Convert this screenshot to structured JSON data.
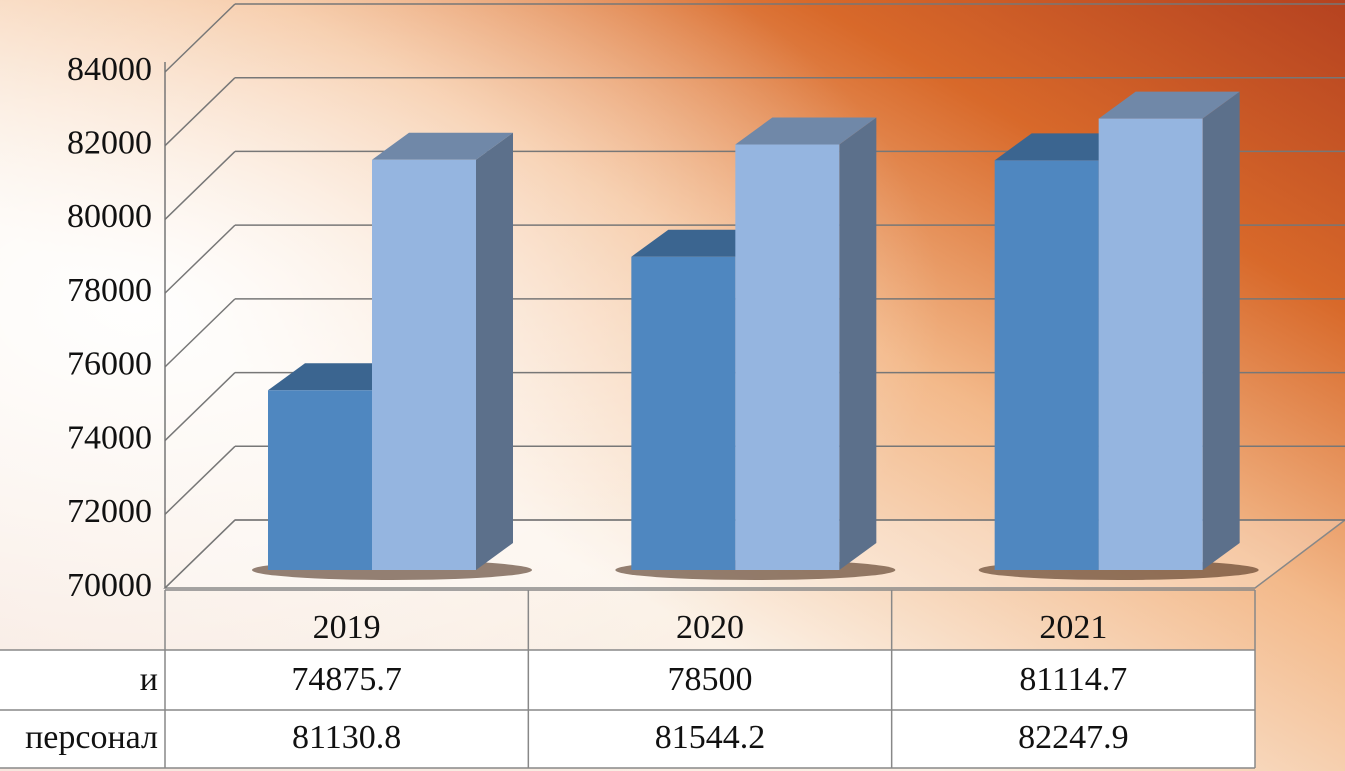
{
  "chart_data": {
    "type": "bar",
    "categories": [
      "2019",
      "2020",
      "2021"
    ],
    "series": [
      {
        "name": "и",
        "color": "#4f87c0",
        "values": [
          74875.7,
          78500,
          81114.7
        ]
      },
      {
        "name": "персонал",
        "color": "#95b5e0",
        "values": [
          81130.8,
          81544.2,
          82247.9
        ]
      }
    ],
    "ylim": [
      70000,
      84000
    ],
    "yticks": [
      70000,
      72000,
      74000,
      76000,
      78000,
      80000,
      82000,
      84000
    ],
    "grid": true,
    "data_table": true
  }
}
